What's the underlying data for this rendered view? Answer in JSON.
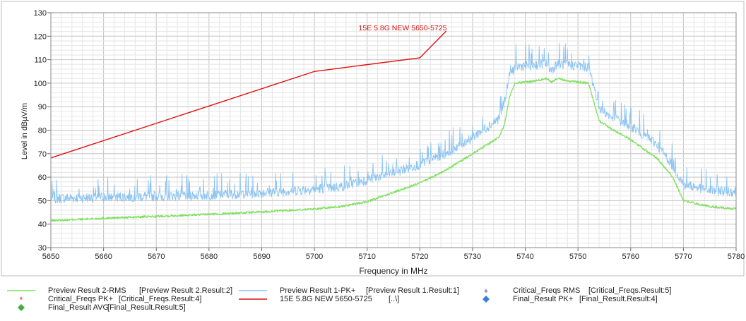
{
  "chart_data": {
    "type": "line",
    "marker_label": "15E 5.8G NEW 5650-5725",
    "xlabel": "Frequency in MHz",
    "ylabel": "Level in dBµV/m",
    "xlim": [
      5650,
      5780
    ],
    "ylim": [
      30,
      130
    ],
    "x_ticks": [
      "5650",
      "5660",
      "5670",
      "5680",
      "5690",
      "5700",
      "5710",
      "5720",
      "5730",
      "5740",
      "5750",
      "5760",
      "5770",
      "5780"
    ],
    "y_ticks": [
      "30",
      "40",
      "50",
      "60",
      "70",
      "80",
      "90",
      "100",
      "110",
      "120",
      "130"
    ],
    "grid": true,
    "legend_position": "bottom",
    "series": [
      {
        "name": "Preview Result 2-RMS",
        "ref": "[Preview Result 2.Result:2]",
        "color": "#80e060",
        "x": [
          5650,
          5660,
          5670,
          5680,
          5690,
          5700,
          5705,
          5710,
          5715,
          5720,
          5725,
          5730,
          5735,
          5736,
          5737,
          5738,
          5740,
          5742,
          5744,
          5745,
          5746,
          5748,
          5750,
          5752,
          5753,
          5754,
          5756,
          5760,
          5765,
          5768,
          5770,
          5775,
          5780
        ],
        "y": [
          41.5,
          42.5,
          43.3,
          44.2,
          45.2,
          46.5,
          47.5,
          49.5,
          53.5,
          57.5,
          63,
          70,
          77,
          82,
          94,
          100,
          100.5,
          101,
          102,
          100.5,
          102,
          101,
          100.5,
          100,
          92,
          84,
          81,
          76,
          68,
          60,
          50,
          47.5,
          46.5
        ]
      },
      {
        "name": "Preview Result 1-PK+",
        "ref": "[Preview Result 1.Result:1]",
        "color": "#8cc4f2",
        "x": [
          5650,
          5660,
          5670,
          5680,
          5690,
          5700,
          5705,
          5710,
          5715,
          5720,
          5725,
          5730,
          5735,
          5736,
          5737,
          5738,
          5740,
          5742,
          5744,
          5745,
          5746,
          5748,
          5750,
          5752,
          5753,
          5754,
          5756,
          5760,
          5765,
          5768,
          5770,
          5775,
          5780
        ],
        "y": [
          51,
          51.5,
          52,
          52.5,
          53.5,
          55,
          56,
          59,
          62,
          65.5,
          70.5,
          77,
          85,
          92,
          103,
          107,
          107.5,
          108,
          108.5,
          105.5,
          108.5,
          108,
          107.5,
          107,
          99,
          90,
          86,
          82,
          74,
          65,
          57,
          54.5,
          54
        ]
      },
      {
        "name": "15E 5.8G NEW 5650-5725",
        "ref": "[..\\]",
        "color": "#dd1111",
        "x": [
          5650,
          5700,
          5720,
          5725
        ],
        "y": [
          68.2,
          105,
          110.8,
          122.2
        ]
      },
      {
        "name": "Critical_Freqs RMS",
        "ref": "[Critical_Freqs.Result:5]",
        "color": "#2a2aa8",
        "x": [],
        "y": []
      },
      {
        "name": "Critical_Freqs PK+",
        "ref": "[Critical_Freqs.Result:4]",
        "color": "#ee2222",
        "x": [],
        "y": []
      },
      {
        "name": "Final_Result PK+",
        "ref": "[Final_Result.Result:4]",
        "color": "#3a7fd8",
        "x": [],
        "y": []
      },
      {
        "name": "Final_Result AVG",
        "ref": "[Final_Result.Result:5]",
        "color": "#44aa44",
        "x": [],
        "y": []
      }
    ]
  }
}
